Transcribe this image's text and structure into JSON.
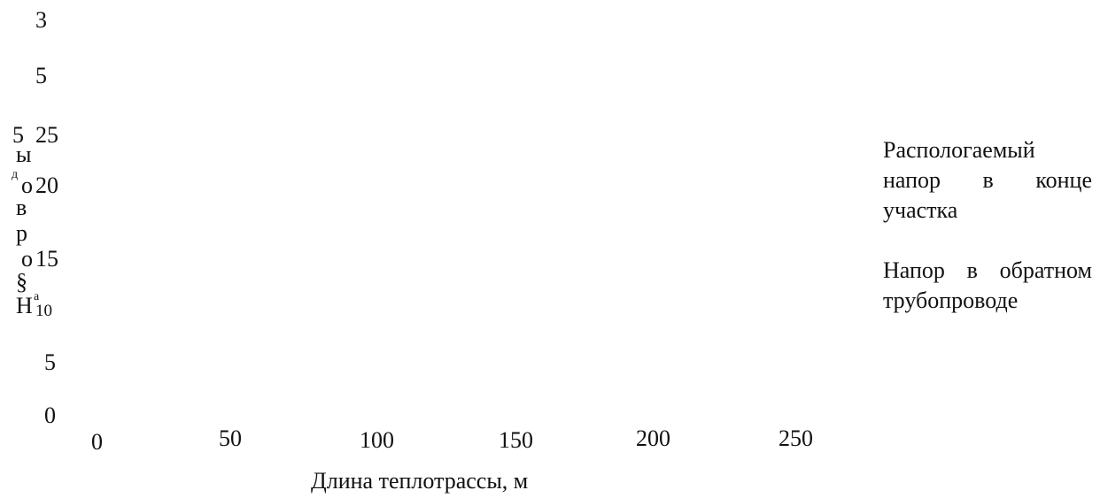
{
  "chart_data": {
    "type": "line",
    "title": "",
    "xlabel": "Длина теплотрассы, м",
    "ylabel": "Напоры",
    "x_ticks": [
      "0",
      "50",
      "100",
      "150",
      "200",
      "250"
    ],
    "y_ticks": [
      "0",
      "5",
      "10",
      "15",
      "20",
      "25"
    ],
    "y_extra_top": [
      "3",
      "5"
    ],
    "xlim": [
      0,
      250
    ],
    "ylim": [
      0,
      25
    ],
    "grid": false,
    "legend_position": "right",
    "series": [
      {
        "name": "Распологаемый напор в конце участка",
        "values": []
      },
      {
        "name": "Напор в обратном трубопроводе",
        "values": []
      }
    ]
  },
  "artifacts": {
    "y_label_glyphs": [
      "5",
      "ы",
      "д",
      "о",
      "в",
      "р",
      "о",
      "§",
      "Н",
      "а"
    ]
  }
}
